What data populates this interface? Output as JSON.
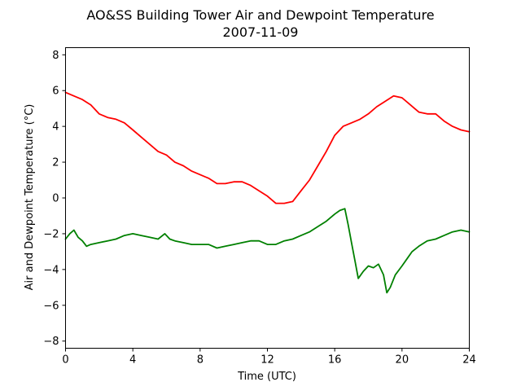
{
  "chart_data": {
    "type": "line",
    "title": "AO&SS Building Tower Air and Dewpoint Temperature",
    "subtitle": "2007-11-09",
    "xlabel": "Time (UTC)",
    "ylabel": "Air and Dewpoint Temperature (°C)",
    "xlim": [
      0,
      24
    ],
    "ylim": [
      -8.4,
      8.4
    ],
    "xticks": [
      0,
      4,
      8,
      12,
      16,
      20,
      24
    ],
    "yticks": [
      -8,
      -6,
      -4,
      -2,
      0,
      2,
      4,
      6,
      8
    ],
    "grid": false,
    "legend": "none",
    "series": [
      {
        "color": "#ff0000",
        "x": [
          0,
          0.5,
          1,
          1.5,
          2,
          2.5,
          3,
          3.5,
          4,
          4.5,
          5,
          5.5,
          6,
          6.5,
          7,
          7.5,
          8,
          8.5,
          9,
          9.5,
          10,
          10.5,
          11,
          11.5,
          12,
          12.5,
          13,
          13.5,
          14,
          14.5,
          15,
          15.5,
          16,
          16.5,
          17,
          17.5,
          18,
          18.5,
          19,
          19.5,
          20,
          20.5,
          21,
          21.5,
          22,
          22.5,
          23,
          23.5,
          24
        ],
        "values": [
          5.9,
          5.7,
          5.5,
          5.2,
          4.7,
          4.5,
          4.4,
          4.2,
          3.8,
          3.4,
          3.0,
          2.6,
          2.4,
          2.0,
          1.8,
          1.5,
          1.3,
          1.1,
          0.8,
          0.8,
          0.9,
          0.9,
          0.7,
          0.4,
          0.1,
          -0.3,
          -0.3,
          -0.2,
          0.4,
          1.0,
          1.8,
          2.6,
          3.5,
          4.0,
          4.2,
          4.4,
          4.7,
          5.1,
          5.4,
          5.7,
          5.6,
          5.2,
          4.8,
          4.7,
          4.7,
          4.3,
          4.0,
          3.8,
          3.7
        ]
      },
      {
        "color": "#008000",
        "x": [
          0,
          0.25,
          0.5,
          0.75,
          1,
          1.25,
          1.5,
          2,
          2.5,
          3,
          3.5,
          4,
          4.5,
          5,
          5.5,
          5.9,
          6.2,
          6.5,
          7,
          7.5,
          8,
          8.5,
          9,
          9.5,
          10,
          10.5,
          11,
          11.5,
          12,
          12.5,
          13,
          13.5,
          14,
          14.5,
          15,
          15.5,
          16,
          16.3,
          16.6,
          16.8,
          17,
          17.2,
          17.4,
          17.7,
          18,
          18.3,
          18.6,
          18.9,
          19.1,
          19.3,
          19.6,
          20,
          20.3,
          20.6,
          21,
          21.5,
          22,
          22.5,
          23,
          23.5,
          24
        ],
        "values": [
          -2.3,
          -2.0,
          -1.8,
          -2.2,
          -2.4,
          -2.7,
          -2.6,
          -2.5,
          -2.4,
          -2.3,
          -2.1,
          -2.0,
          -2.1,
          -2.2,
          -2.3,
          -2.0,
          -2.3,
          -2.4,
          -2.5,
          -2.6,
          -2.6,
          -2.6,
          -2.8,
          -2.7,
          -2.6,
          -2.5,
          -2.4,
          -2.4,
          -2.6,
          -2.6,
          -2.4,
          -2.3,
          -2.1,
          -1.9,
          -1.6,
          -1.3,
          -0.9,
          -0.7,
          -0.6,
          -1.5,
          -2.5,
          -3.5,
          -4.5,
          -4.1,
          -3.8,
          -3.9,
          -3.7,
          -4.3,
          -5.3,
          -5.0,
          -4.3,
          -3.8,
          -3.4,
          -3.0,
          -2.7,
          -2.4,
          -2.3,
          -2.1,
          -1.9,
          -1.8,
          -1.9
        ]
      }
    ]
  }
}
